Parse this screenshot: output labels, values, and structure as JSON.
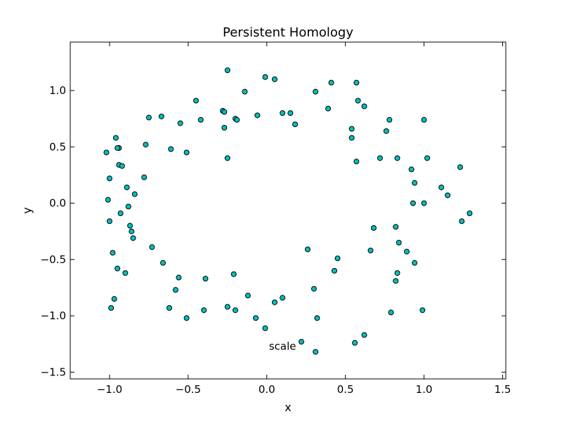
{
  "chart_data": {
    "type": "scatter",
    "title": "Persistent Homology",
    "xlabel": "x",
    "ylabel": "y",
    "xlim": [
      -1.25,
      1.52
    ],
    "ylim": [
      -1.56,
      1.43
    ],
    "xticks": [
      -1.0,
      -0.5,
      0.0,
      0.5,
      1.0,
      1.5
    ],
    "xtick_labels": [
      "−1.0",
      "−0.5",
      "0.0",
      "0.5",
      "1.0",
      "1.5"
    ],
    "yticks": [
      -1.5,
      -1.0,
      -0.5,
      0.0,
      0.5,
      1.0
    ],
    "ytick_labels": [
      "−1.5",
      "−1.0",
      "−0.5",
      "0.0",
      "0.5",
      "1.0"
    ],
    "grid": false,
    "marker_color": "#00bfbf",
    "marker_edge_color": "#000000",
    "annotation": {
      "text": "scale",
      "x": 0.1,
      "y": -1.27
    },
    "series": [
      {
        "x": [
          -1.02,
          -0.96,
          -0.94,
          -1.0,
          -0.94,
          -0.77,
          -0.75,
          -0.67,
          -0.61,
          -0.55,
          -0.51,
          -0.45,
          -0.42,
          -0.28,
          -0.27,
          -0.25,
          -0.2,
          -0.14,
          -0.06,
          -0.01,
          0.05,
          0.1,
          0.15,
          0.18,
          0.31,
          0.39,
          0.41,
          0.54,
          0.57,
          0.58,
          0.62,
          0.76,
          0.78,
          0.57,
          0.54,
          0.72,
          0.83,
          0.92,
          0.94,
          1.0,
          1.02,
          1.11,
          1.15,
          1.23,
          1.29,
          1.24,
          1.0,
          0.93,
          0.82,
          0.84,
          0.89,
          0.94,
          0.83,
          0.82,
          0.79,
          0.99,
          0.68,
          0.66,
          0.45,
          0.43,
          0.3,
          0.32,
          0.26,
          0.62,
          0.56,
          0.31,
          0.22,
          -0.01,
          0.05,
          0.1,
          -0.07,
          -0.12,
          -0.2,
          -0.25,
          -0.21,
          -0.39,
          -0.4,
          -0.51,
          -0.56,
          -0.58,
          -0.62,
          -0.66,
          -0.73,
          -0.85,
          -0.86,
          -0.87,
          -0.88,
          -0.89,
          -0.9,
          -0.84,
          -0.78,
          -0.93,
          -0.95,
          -0.97,
          -0.98,
          -1.0,
          -1.01,
          -0.99,
          -0.95,
          -0.92,
          -0.25,
          -0.27,
          -0.19
        ],
        "y": [
          0.45,
          0.58,
          0.49,
          0.22,
          0.34,
          0.52,
          0.76,
          0.77,
          0.48,
          0.71,
          0.45,
          0.91,
          0.74,
          0.82,
          0.67,
          1.18,
          0.75,
          0.99,
          0.78,
          1.12,
          1.1,
          0.8,
          0.8,
          0.7,
          0.99,
          0.84,
          1.07,
          0.66,
          1.07,
          0.91,
          0.86,
          0.64,
          0.74,
          0.37,
          0.58,
          0.4,
          0.4,
          0.3,
          0.18,
          0.74,
          0.4,
          0.14,
          0.07,
          0.32,
          -0.09,
          -0.16,
          0.0,
          0.0,
          -0.21,
          -0.35,
          -0.43,
          -0.53,
          -0.62,
          -0.69,
          -0.97,
          -0.95,
          -0.22,
          -0.42,
          -0.49,
          -0.6,
          -0.76,
          -1.02,
          -0.41,
          -1.17,
          -1.24,
          -1.32,
          -1.23,
          -1.11,
          -0.88,
          -0.84,
          -1.02,
          -0.82,
          -0.95,
          -0.92,
          -0.63,
          -0.67,
          -0.95,
          -1.02,
          -0.66,
          -0.77,
          -0.93,
          -0.53,
          -0.39,
          -0.31,
          -0.25,
          -0.2,
          -0.03,
          0.14,
          -0.62,
          0.08,
          0.23,
          -0.09,
          -0.58,
          -0.85,
          -0.44,
          -0.16,
          0.03,
          -0.93,
          0.49,
          0.33,
          0.4,
          0.81,
          0.74
        ]
      }
    ]
  }
}
